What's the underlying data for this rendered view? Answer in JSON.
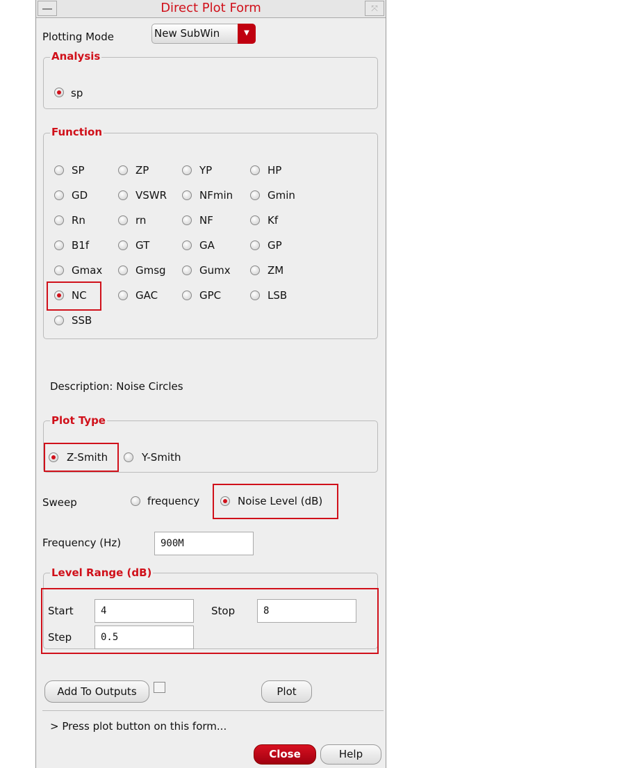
{
  "window": {
    "title": "Direct Plot Form"
  },
  "plotting_mode": {
    "label": "Plotting Mode",
    "value": "New SubWin"
  },
  "analysis": {
    "label": "Analysis",
    "options": [
      {
        "label": "sp",
        "selected": true
      }
    ]
  },
  "function": {
    "label": "Function",
    "rows": [
      [
        "SP",
        "ZP",
        "YP",
        "HP"
      ],
      [
        "GD",
        "VSWR",
        "NFmin",
        "Gmin"
      ],
      [
        "Rn",
        "rn",
        "NF",
        "Kf"
      ],
      [
        "B1f",
        "GT",
        "GA",
        "GP"
      ],
      [
        "Gmax",
        "Gmsg",
        "Gumx",
        "ZM"
      ],
      [
        "NC",
        "GAC",
        "GPC",
        "LSB"
      ],
      [
        "SSB"
      ]
    ],
    "selected": "NC"
  },
  "description": "Description: Noise Circles",
  "plot_type": {
    "label": "Plot Type",
    "options": [
      "Z-Smith",
      "Y-Smith"
    ],
    "selected": "Z-Smith"
  },
  "sweep": {
    "label": "Sweep",
    "options": [
      "frequency",
      "Noise Level (dB)"
    ],
    "selected": "Noise Level (dB)"
  },
  "frequency": {
    "label": "Frequency (Hz)",
    "value": "900M"
  },
  "level_range": {
    "label": "Level Range (dB)",
    "start_label": "Start",
    "start": "4",
    "stop_label": "Stop",
    "stop": "8",
    "step_label": "Step",
    "step": "0.5"
  },
  "buttons": {
    "add_to_outputs": "Add To Outputs",
    "plot": "Plot",
    "close": "Close",
    "help": "Help"
  },
  "status": "> Press plot button on this form...",
  "colors": {
    "accent": "#d0101a"
  }
}
